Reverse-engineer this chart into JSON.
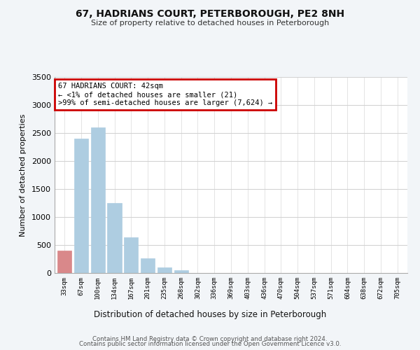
{
  "title": "67, HADRIANS COURT, PETERBOROUGH, PE2 8NH",
  "subtitle": "Size of property relative to detached houses in Peterborough",
  "xlabel": "Distribution of detached houses by size in Peterborough",
  "ylabel": "Number of detached properties",
  "bar_labels": [
    "33sqm",
    "67sqm",
    "100sqm",
    "134sqm",
    "167sqm",
    "201sqm",
    "235sqm",
    "268sqm",
    "302sqm",
    "336sqm",
    "369sqm",
    "403sqm",
    "436sqm",
    "470sqm",
    "504sqm",
    "537sqm",
    "571sqm",
    "604sqm",
    "638sqm",
    "672sqm",
    "705sqm"
  ],
  "bar_values": [
    400,
    2400,
    2600,
    1250,
    640,
    260,
    100,
    50,
    0,
    0,
    0,
    0,
    0,
    0,
    0,
    0,
    0,
    0,
    0,
    0,
    0
  ],
  "bar_color": "#aecde1",
  "highlight_bar_index": 0,
  "highlight_bar_color": "#d9888a",
  "ylim": [
    0,
    3500
  ],
  "yticks": [
    0,
    500,
    1000,
    1500,
    2000,
    2500,
    3000,
    3500
  ],
  "annotation_box_text": "67 HADRIANS COURT: 42sqm\n← <1% of detached houses are smaller (21)\n>99% of semi-detached houses are larger (7,624) →",
  "annotation_box_edgecolor": "#cc0000",
  "footer_line1": "Contains HM Land Registry data © Crown copyright and database right 2024.",
  "footer_line2": "Contains public sector information licensed under the Open Government Licence v3.0.",
  "bg_color": "#f2f5f8",
  "plot_bg_color": "#ffffff",
  "grid_color": "#d0d0d0"
}
